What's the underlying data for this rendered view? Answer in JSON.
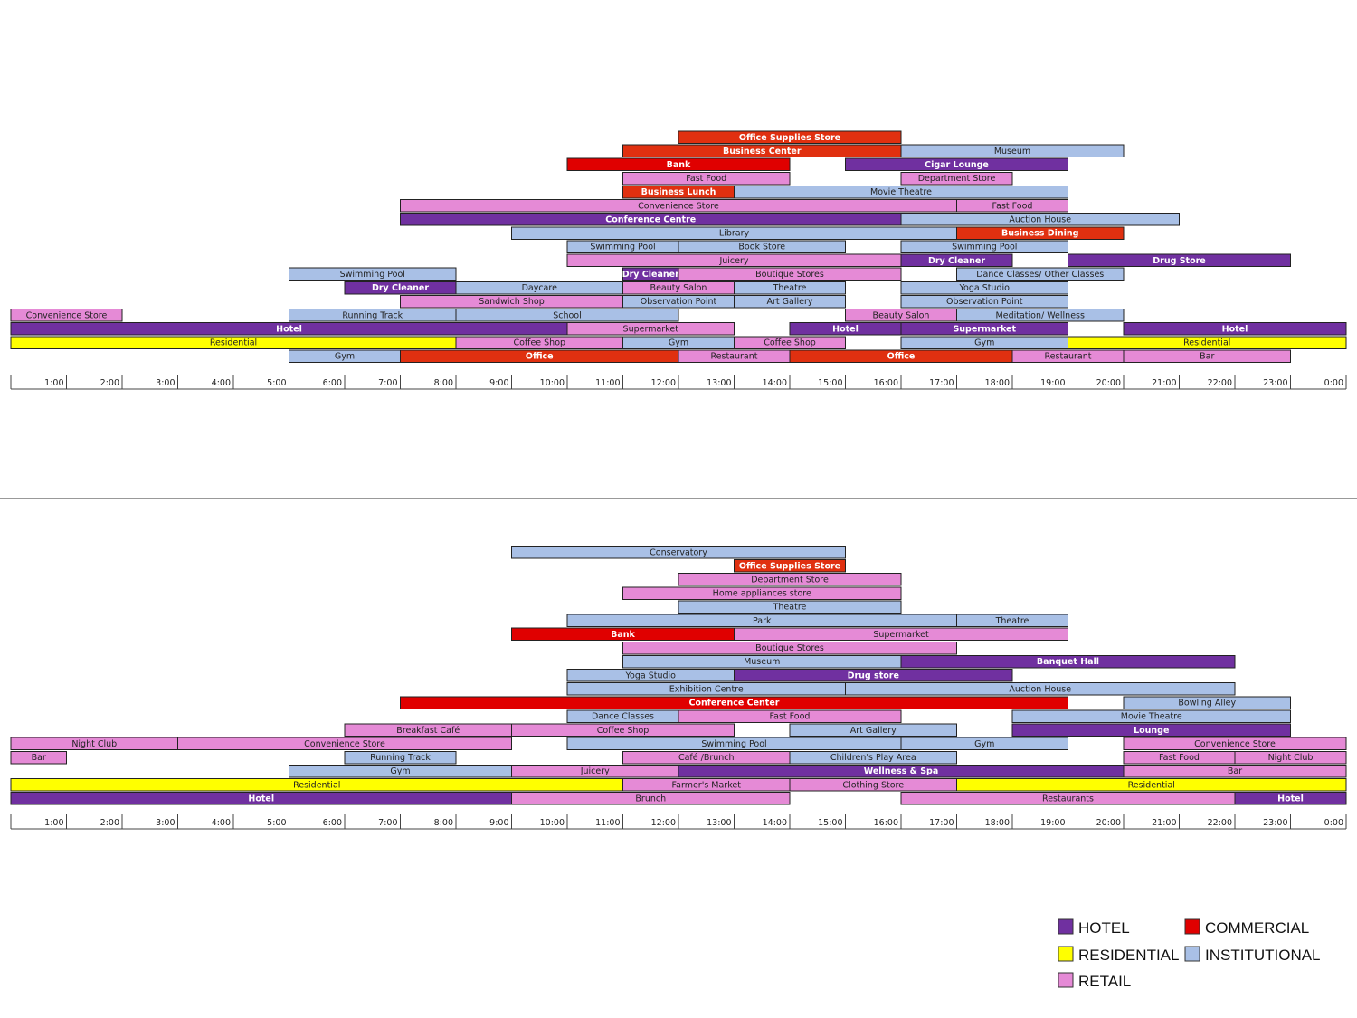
{
  "colors": {
    "hotel": "#7030a0",
    "commercial": "#e00000",
    "commercial_alt": "#e03010",
    "residential": "#ffff00",
    "institutional": "#a9c0e6",
    "retail": "#e58ad6"
  },
  "legend": [
    {
      "key": "hotel",
      "label": "HOTEL"
    },
    {
      "key": "commercial",
      "label": "COMMERCIAL"
    },
    {
      "key": "residential",
      "label": "RESIDENTIAL"
    },
    {
      "key": "institutional",
      "label": "INSTITUTIONAL"
    },
    {
      "key": "retail",
      "label": "RETAIL"
    }
  ],
  "chart_data": [
    {
      "type": "bar",
      "subtype": "timeline-gantt",
      "x_unit": "hour of day",
      "xlim": [
        0,
        24
      ],
      "ticks": [
        "1:00",
        "2:00",
        "3:00",
        "4:00",
        "5:00",
        "6:00",
        "7:00",
        "8:00",
        "9:00",
        "10:00",
        "11:00",
        "12:00",
        "13:00",
        "14:00",
        "15:00",
        "16:00",
        "17:00",
        "18:00",
        "19:00",
        "20:00",
        "21:00",
        "22:00",
        "23:00",
        "0:00"
      ],
      "rows": [
        [
          {
            "label": "Office Supplies Store",
            "start": 12,
            "end": 16,
            "cat": "commercial_alt"
          }
        ],
        [
          {
            "label": "Business Center",
            "start": 11,
            "end": 16,
            "cat": "commercial_alt"
          },
          {
            "label": "Museum",
            "start": 16,
            "end": 20,
            "cat": "institutional"
          }
        ],
        [
          {
            "label": "Bank",
            "start": 10,
            "end": 14,
            "cat": "commercial"
          },
          {
            "label": "Cigar Lounge",
            "start": 15,
            "end": 19,
            "cat": "hotel"
          }
        ],
        [
          {
            "label": "Fast Food",
            "start": 11,
            "end": 14,
            "cat": "retail"
          },
          {
            "label": "Department Store",
            "start": 16,
            "end": 18,
            "cat": "retail"
          }
        ],
        [
          {
            "label": "Business Lunch",
            "start": 11,
            "end": 13,
            "cat": "commercial_alt"
          },
          {
            "label": "Movie Theatre",
            "start": 13,
            "end": 19,
            "cat": "institutional"
          }
        ],
        [
          {
            "label": "Convenience Store",
            "start": 7,
            "end": 17,
            "cat": "retail"
          },
          {
            "label": "Fast Food",
            "start": 17,
            "end": 19,
            "cat": "retail"
          }
        ],
        [
          {
            "label": "Conference Centre",
            "start": 7,
            "end": 16,
            "cat": "hotel"
          },
          {
            "label": "Auction House",
            "start": 16,
            "end": 21,
            "cat": "institutional"
          }
        ],
        [
          {
            "label": "Library",
            "start": 9,
            "end": 17,
            "cat": "institutional"
          },
          {
            "label": "Business Dining",
            "start": 17,
            "end": 20,
            "cat": "commercial_alt"
          }
        ],
        [
          {
            "label": "Swimming Pool",
            "start": 10,
            "end": 12,
            "cat": "institutional"
          },
          {
            "label": "Book Store",
            "start": 12,
            "end": 15,
            "cat": "institutional"
          },
          {
            "label": "Swimming Pool",
            "start": 16,
            "end": 19,
            "cat": "institutional"
          }
        ],
        [
          {
            "label": "Juicery",
            "start": 10,
            "end": 16,
            "cat": "retail"
          },
          {
            "label": "Dry Cleaner",
            "start": 16,
            "end": 18,
            "cat": "hotel"
          },
          {
            "label": "Drug Store",
            "start": 19,
            "end": 23,
            "cat": "hotel"
          }
        ],
        [
          {
            "label": "Swimming Pool",
            "start": 5,
            "end": 8,
            "cat": "institutional"
          },
          {
            "label": "Dry Cleaner",
            "start": 11,
            "end": 12,
            "cat": "hotel"
          },
          {
            "label": "Boutique Stores",
            "start": 12,
            "end": 16,
            "cat": "retail"
          },
          {
            "label": "Dance Classes/ Other Classes",
            "start": 17,
            "end": 20,
            "cat": "institutional"
          }
        ],
        [
          {
            "label": "Dry Cleaner",
            "start": 6,
            "end": 8,
            "cat": "hotel"
          },
          {
            "label": "Daycare",
            "start": 8,
            "end": 11,
            "cat": "institutional"
          },
          {
            "label": "Beauty Salon",
            "start": 11,
            "end": 13,
            "cat": "retail"
          },
          {
            "label": "Theatre",
            "start": 13,
            "end": 15,
            "cat": "institutional"
          },
          {
            "label": "Yoga Studio",
            "start": 16,
            "end": 19,
            "cat": "institutional"
          }
        ],
        [
          {
            "label": "Sandwich Shop",
            "start": 7,
            "end": 11,
            "cat": "retail"
          },
          {
            "label": "Observation Point",
            "start": 11,
            "end": 13,
            "cat": "institutional"
          },
          {
            "label": "Art Gallery",
            "start": 13,
            "end": 15,
            "cat": "institutional"
          },
          {
            "label": "Observation Point",
            "start": 16,
            "end": 19,
            "cat": "institutional"
          }
        ],
        [
          {
            "label": "Convenience Store",
            "start": 0,
            "end": 2,
            "cat": "retail"
          },
          {
            "label": "Running Track",
            "start": 5,
            "end": 8,
            "cat": "institutional"
          },
          {
            "label": "School",
            "start": 8,
            "end": 12,
            "cat": "institutional"
          },
          {
            "label": "Beauty Salon",
            "start": 15,
            "end": 17,
            "cat": "retail"
          },
          {
            "label": "Meditation/ Wellness",
            "start": 17,
            "end": 20,
            "cat": "institutional"
          }
        ],
        [
          {
            "label": "Hotel",
            "start": 0,
            "end": 10,
            "cat": "hotel"
          },
          {
            "label": "Supermarket",
            "start": 10,
            "end": 13,
            "cat": "retail"
          },
          {
            "label": "Hotel",
            "start": 14,
            "end": 16,
            "cat": "hotel"
          },
          {
            "label": "Supermarket",
            "start": 16,
            "end": 19,
            "cat": "hotel"
          },
          {
            "label": "Hotel",
            "start": 20,
            "end": 24,
            "cat": "hotel"
          }
        ],
        [
          {
            "label": "Residential",
            "start": 0,
            "end": 8,
            "cat": "residential"
          },
          {
            "label": "Coffee Shop",
            "start": 8,
            "end": 11,
            "cat": "retail"
          },
          {
            "label": "Gym",
            "start": 11,
            "end": 13,
            "cat": "institutional"
          },
          {
            "label": "Coffee Shop",
            "start": 13,
            "end": 15,
            "cat": "retail"
          },
          {
            "label": "Gym",
            "start": 16,
            "end": 19,
            "cat": "institutional"
          },
          {
            "label": "Residential",
            "start": 19,
            "end": 24,
            "cat": "residential"
          }
        ],
        [
          {
            "label": "Gym",
            "start": 5,
            "end": 7,
            "cat": "institutional"
          },
          {
            "label": "Office",
            "start": 7,
            "end": 12,
            "cat": "commercial_alt"
          },
          {
            "label": "Restaurant",
            "start": 12,
            "end": 14,
            "cat": "retail"
          },
          {
            "label": "Office",
            "start": 14,
            "end": 18,
            "cat": "commercial_alt"
          },
          {
            "label": "Restaurant",
            "start": 18,
            "end": 20,
            "cat": "retail"
          },
          {
            "label": "Bar",
            "start": 20,
            "end": 23,
            "cat": "retail"
          }
        ]
      ]
    },
    {
      "type": "bar",
      "subtype": "timeline-gantt",
      "x_unit": "hour of day",
      "xlim": [
        0,
        24
      ],
      "ticks": [
        "1:00",
        "2:00",
        "3:00",
        "4:00",
        "5:00",
        "6:00",
        "7:00",
        "8:00",
        "9:00",
        "10:00",
        "11:00",
        "12:00",
        "13:00",
        "14:00",
        "15:00",
        "16:00",
        "17:00",
        "18:00",
        "19:00",
        "20:00",
        "21:00",
        "22:00",
        "23:00",
        "0:00"
      ],
      "rows": [
        [
          {
            "label": "Conservatory",
            "start": 9,
            "end": 15,
            "cat": "institutional"
          }
        ],
        [
          {
            "label": "Office Supplies Store",
            "start": 13,
            "end": 15,
            "cat": "commercial_alt"
          }
        ],
        [
          {
            "label": "Department Store",
            "start": 12,
            "end": 16,
            "cat": "retail"
          }
        ],
        [
          {
            "label": "Home appliances store",
            "start": 11,
            "end": 16,
            "cat": "retail"
          }
        ],
        [
          {
            "label": "Theatre",
            "start": 12,
            "end": 16,
            "cat": "institutional"
          }
        ],
        [
          {
            "label": "Park",
            "start": 10,
            "end": 17,
            "cat": "institutional"
          },
          {
            "label": "Theatre",
            "start": 17,
            "end": 19,
            "cat": "institutional"
          }
        ],
        [
          {
            "label": "Bank",
            "start": 9,
            "end": 13,
            "cat": "commercial"
          },
          {
            "label": "Supermarket",
            "start": 13,
            "end": 19,
            "cat": "retail"
          }
        ],
        [
          {
            "label": "Boutique Stores",
            "start": 11,
            "end": 17,
            "cat": "retail"
          }
        ],
        [
          {
            "label": "Museum",
            "start": 11,
            "end": 16,
            "cat": "institutional"
          },
          {
            "label": "Banquet Hall",
            "start": 16,
            "end": 22,
            "cat": "hotel"
          }
        ],
        [
          {
            "label": "Yoga Studio",
            "start": 10,
            "end": 13,
            "cat": "institutional"
          },
          {
            "label": "Drug store",
            "start": 13,
            "end": 18,
            "cat": "hotel"
          }
        ],
        [
          {
            "label": "Exhibition Centre",
            "start": 10,
            "end": 15,
            "cat": "institutional"
          },
          {
            "label": "Auction House",
            "start": 15,
            "end": 22,
            "cat": "institutional"
          }
        ],
        [
          {
            "label": "Conference Center",
            "start": 7,
            "end": 19,
            "cat": "commercial"
          },
          {
            "label": "Bowling Alley",
            "start": 20,
            "end": 23,
            "cat": "institutional"
          }
        ],
        [
          {
            "label": "Dance Classes",
            "start": 10,
            "end": 12,
            "cat": "institutional"
          },
          {
            "label": "Fast Food",
            "start": 12,
            "end": 16,
            "cat": "retail"
          },
          {
            "label": "Movie Theatre",
            "start": 18,
            "end": 23,
            "cat": "institutional"
          }
        ],
        [
          {
            "label": "Breakfast Café",
            "start": 6,
            "end": 9,
            "cat": "retail"
          },
          {
            "label": "Coffee Shop",
            "start": 9,
            "end": 13,
            "cat": "retail"
          },
          {
            "label": "Art Gallery",
            "start": 14,
            "end": 17,
            "cat": "institutional"
          },
          {
            "label": "Lounge",
            "start": 18,
            "end": 23,
            "cat": "hotel"
          }
        ],
        [
          {
            "label": "Night Club",
            "start": 0,
            "end": 3,
            "cat": "retail"
          },
          {
            "label": "Convenience Store",
            "start": 3,
            "end": 9,
            "cat": "retail"
          },
          {
            "label": "Swimming Pool",
            "start": 10,
            "end": 16,
            "cat": "institutional"
          },
          {
            "label": "Gym",
            "start": 16,
            "end": 19,
            "cat": "institutional"
          },
          {
            "label": "Convenience Store",
            "start": 20,
            "end": 24,
            "cat": "retail"
          }
        ],
        [
          {
            "label": "Bar",
            "start": 0,
            "end": 1,
            "cat": "retail"
          },
          {
            "label": "Running Track",
            "start": 6,
            "end": 8,
            "cat": "institutional"
          },
          {
            "label": "Café /Brunch",
            "start": 11,
            "end": 14,
            "cat": "retail"
          },
          {
            "label": "Children's Play Area",
            "start": 14,
            "end": 17,
            "cat": "institutional"
          },
          {
            "label": "Fast Food",
            "start": 20,
            "end": 22,
            "cat": "retail"
          },
          {
            "label": "Night Club",
            "start": 22,
            "end": 24,
            "cat": "retail"
          }
        ],
        [
          {
            "label": "Gym",
            "start": 5,
            "end": 9,
            "cat": "institutional"
          },
          {
            "label": "Juicery",
            "start": 9,
            "end": 12,
            "cat": "retail"
          },
          {
            "label": "Wellness & Spa",
            "start": 12,
            "end": 20,
            "cat": "hotel"
          },
          {
            "label": "Bar",
            "start": 20,
            "end": 24,
            "cat": "retail"
          }
        ],
        [
          {
            "label": "Residential",
            "start": 0,
            "end": 11,
            "cat": "residential"
          },
          {
            "label": "Farmer's Market",
            "start": 11,
            "end": 14,
            "cat": "retail"
          },
          {
            "label": "Clothing Store",
            "start": 14,
            "end": 17,
            "cat": "retail"
          },
          {
            "label": "Residential",
            "start": 17,
            "end": 24,
            "cat": "residential"
          }
        ],
        [
          {
            "label": "Hotel",
            "start": 0,
            "end": 9,
            "cat": "hotel"
          },
          {
            "label": "Brunch",
            "start": 9,
            "end": 14,
            "cat": "retail"
          },
          {
            "label": "Restaurants",
            "start": 16,
            "end": 22,
            "cat": "retail"
          },
          {
            "label": "Hotel",
            "start": 22,
            "end": 24,
            "cat": "hotel"
          }
        ]
      ]
    }
  ]
}
